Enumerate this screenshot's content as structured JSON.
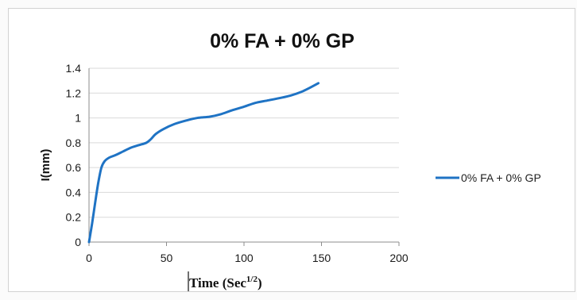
{
  "chart_data": {
    "type": "line",
    "title": "0% FA + 0% GP",
    "xlabel": "Time (Sec",
    "xlabel_superscript": "1/2",
    "xlabel_suffix": ")",
    "ylabel": "I(mm)",
    "xlim": [
      0,
      200
    ],
    "ylim": [
      0,
      1.4
    ],
    "x_ticks": [
      "0",
      "50",
      "100",
      "150",
      "200"
    ],
    "y_ticks": [
      "0",
      "0.2",
      "0.4",
      "0.6",
      "0.8",
      "1",
      "1.2",
      "1.4"
    ],
    "grid": "horizontal",
    "legend_position": "right",
    "series": [
      {
        "name": "0% FA + 0% GP",
        "color": "#1f73c4",
        "x": [
          0,
          2,
          4,
          6,
          8,
          10,
          13,
          17,
          22,
          27,
          32,
          37,
          40,
          43,
          48,
          55,
          63,
          70,
          78,
          85,
          92,
          100,
          107,
          115,
          123,
          130,
          137,
          142,
          148
        ],
        "y": [
          0,
          0.15,
          0.32,
          0.48,
          0.6,
          0.65,
          0.68,
          0.7,
          0.73,
          0.76,
          0.78,
          0.8,
          0.83,
          0.87,
          0.91,
          0.95,
          0.98,
          1.0,
          1.01,
          1.03,
          1.06,
          1.09,
          1.12,
          1.14,
          1.16,
          1.18,
          1.21,
          1.24,
          1.28
        ]
      }
    ]
  }
}
